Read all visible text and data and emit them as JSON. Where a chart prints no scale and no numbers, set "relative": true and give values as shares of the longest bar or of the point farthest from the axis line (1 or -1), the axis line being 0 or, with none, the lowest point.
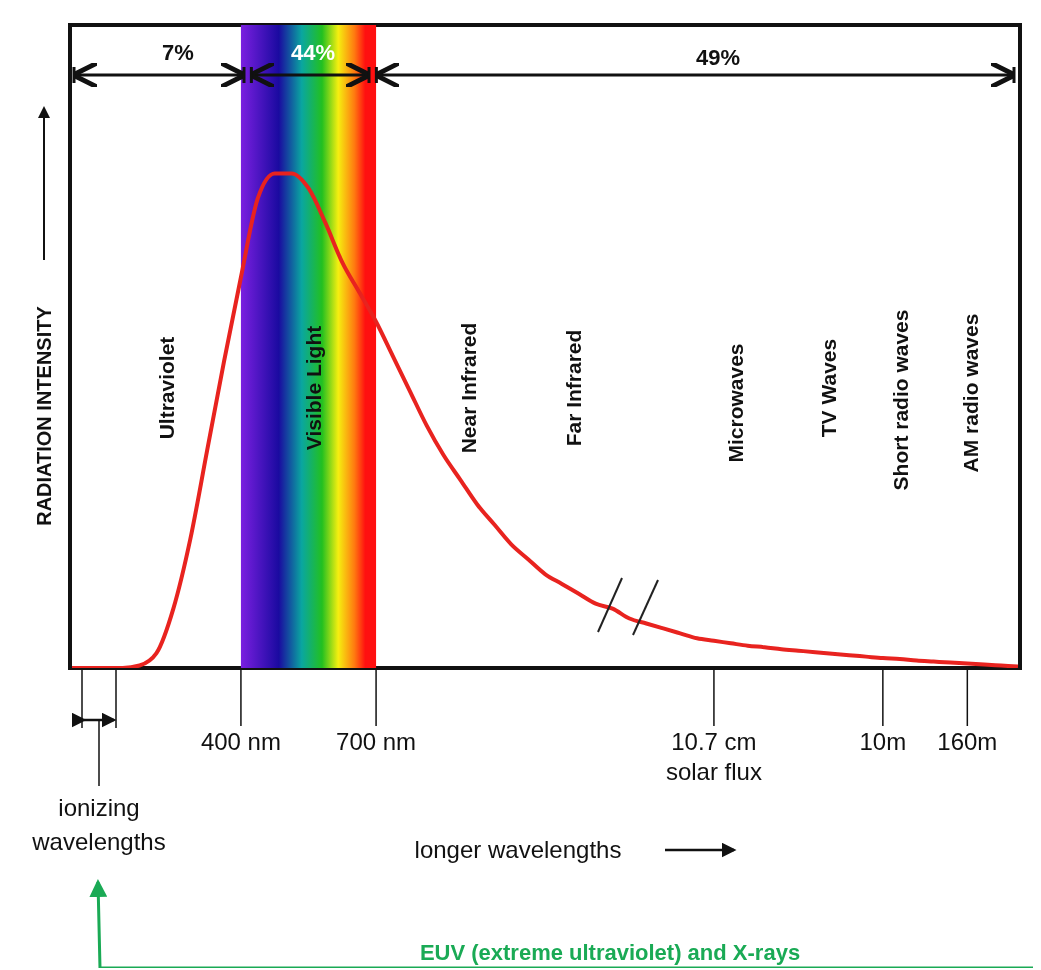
{
  "chart_data": {
    "type": "line",
    "relative": true,
    "ylabel": "RADIATION INTENSITY",
    "marker": "none",
    "line_style": "solid",
    "categories": [
      null,
      null,
      null,
      null,
      null,
      null,
      null,
      null,
      null,
      null,
      "400 nm",
      null,
      null,
      null,
      null,
      null,
      null,
      null,
      "700 nm",
      null,
      null,
      null,
      null,
      null,
      null,
      null,
      null,
      null,
      null,
      null,
      null,
      null,
      null,
      null,
      null,
      null,
      null,
      null,
      "10.7 cm solar flux",
      null,
      null,
      null,
      null,
      null,
      null,
      null,
      null,
      null,
      "10m",
      null,
      null,
      null,
      null,
      "160m",
      null,
      null,
      null
    ],
    "series": [
      {
        "color": "#e8231f",
        "values": [
          0,
          0,
          0,
          0,
          0.005,
          0.03,
          0.12,
          0.26,
          0.44,
          0.62,
          0.79,
          0.95,
          1.0,
          1.0,
          0.97,
          0.9,
          0.82,
          0.76,
          0.7,
          0.63,
          0.56,
          0.49,
          0.43,
          0.38,
          0.33,
          0.29,
          0.25,
          0.22,
          0.19,
          0.17,
          0.15,
          0.13,
          0.12,
          0.1,
          0.09,
          0.08,
          0.07,
          0.06,
          0.055,
          0.05,
          0.045,
          0.042,
          0.038,
          0.035,
          0.032,
          0.029,
          0.026,
          0.023,
          0.02,
          0.018,
          0.015,
          0.013,
          0.011,
          0.009,
          0.007,
          0.005,
          0.003
        ]
      }
    ],
    "bands": [
      {
        "axis": "x",
        "from": "400 nm",
        "to": "700 nm"
      }
    ],
    "annotations": [
      "7%",
      "44%",
      "49%",
      "Ultraviolet",
      "Visible Light",
      "Near Infrared",
      "Far Infrared",
      "Microwaves",
      "TV Waves",
      "Short radio waves",
      "AM radio waves",
      "ionizing wavelengths",
      "longer wavelengths",
      "EUV (extreme ultraviolet) and X-rays"
    ]
  }
}
